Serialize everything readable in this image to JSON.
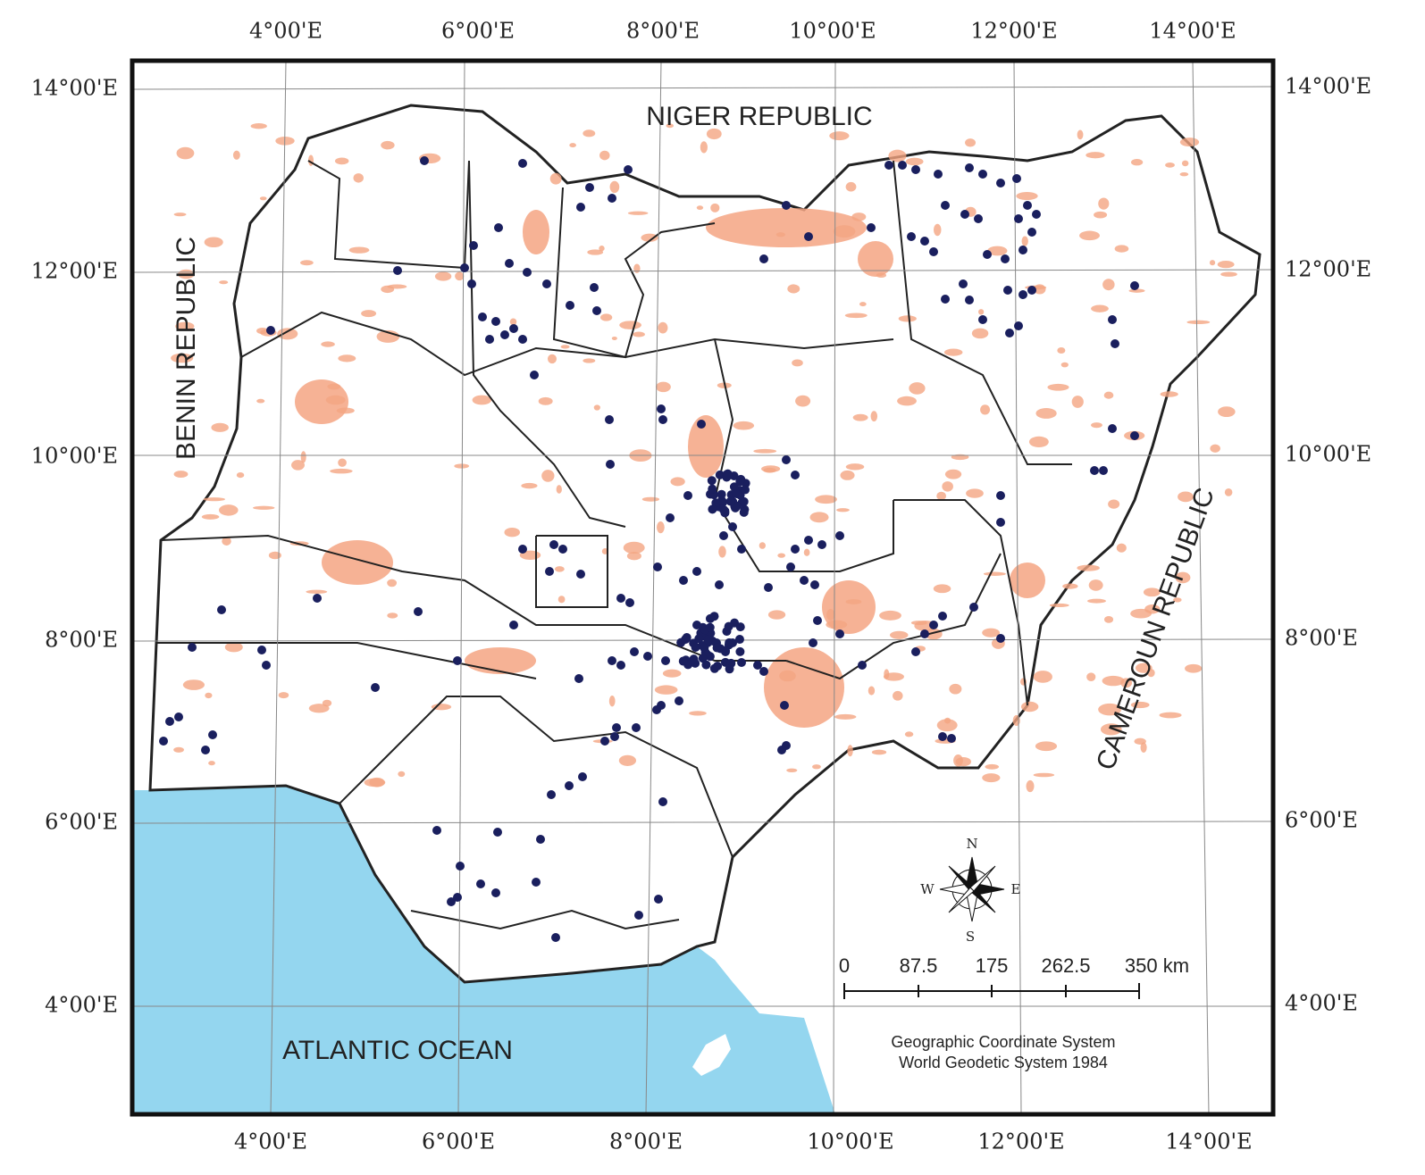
{
  "graticule": {
    "top_labels": [
      "4°00'E",
      "6°00'E",
      "8°00'E",
      "10°00'E",
      "12°00'E",
      "14°00'E"
    ],
    "bottom_labels": [
      "4°00'E",
      "6°00'E",
      "8°00'E",
      "10°00'E",
      "12°00'E",
      "14°00'E"
    ],
    "left_labels": [
      "14°00'E",
      "12°00'E",
      "10°00'E",
      "8°00'E",
      "6°00'E",
      "4°00'E"
    ],
    "right_labels": [
      "14°00'E",
      "12°00'E",
      "10°00'E",
      "8°00'E",
      "6°00'E",
      "4°00'E"
    ]
  },
  "labels": {
    "niger": "NIGER REPUBLIC",
    "benin": "BENIN REPUBLIC",
    "cameroun": "CAMEROUN REPUBLIC",
    "ocean": "ATLANTIC OCEAN"
  },
  "compass": {
    "n": "N",
    "s": "S",
    "e": "E",
    "w": "W"
  },
  "scale_bar": {
    "labels": [
      "0",
      "87.5",
      "175",
      "262.5",
      "350 km"
    ]
  },
  "coordinate_system": [
    "Geographic Coordinate System",
    "World Geodetic System 1984"
  ]
}
